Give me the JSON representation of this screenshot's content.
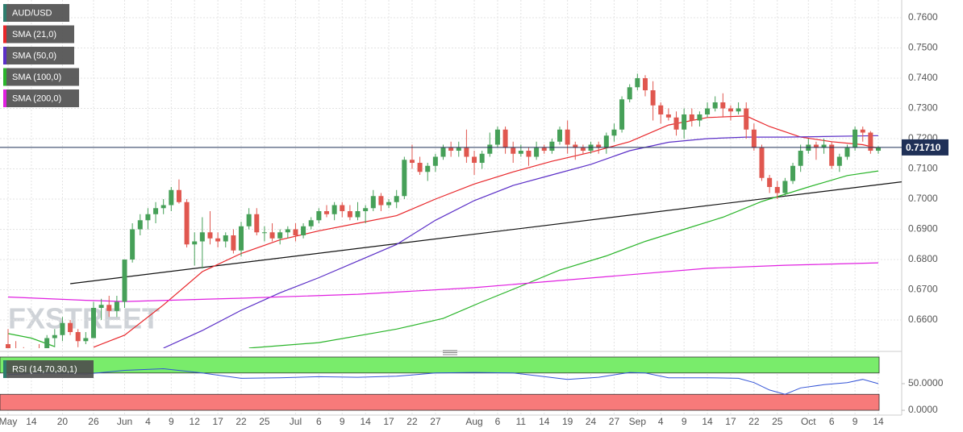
{
  "chart_data": {
    "type": "candlestick",
    "ylim": [
      0.65067,
      0.76587
    ],
    "yticks": [
      {
        "value": 0.66,
        "label": "0.6600"
      },
      {
        "value": 0.67,
        "label": "0.6700"
      },
      {
        "value": 0.68,
        "label": "0.6800"
      },
      {
        "value": 0.69,
        "label": "0.6900"
      },
      {
        "value": 0.7,
        "label": "0.7000"
      },
      {
        "value": 0.71,
        "label": "0.7100"
      },
      {
        "value": 0.72,
        "label": "0.7200"
      },
      {
        "value": 0.73,
        "label": "0.7300"
      },
      {
        "value": 0.74,
        "label": "0.7400"
      },
      {
        "value": 0.75,
        "label": "0.7500"
      },
      {
        "value": 0.76,
        "label": "0.7600"
      }
    ],
    "grid": true,
    "up_color": "#46a058",
    "down_color": "#e0574f",
    "watermark": "FXSTREET",
    "last_price_label": "0.71710",
    "last_price_color": "#1f3057",
    "categories": [
      "May",
      null,
      null,
      "14",
      null,
      null,
      null,
      "20",
      null,
      null,
      null,
      "26",
      null,
      null,
      null,
      "Jun",
      null,
      null,
      "4",
      null,
      null,
      "9",
      null,
      null,
      "12",
      null,
      null,
      "17",
      null,
      null,
      "22",
      null,
      null,
      "25",
      null,
      null,
      null,
      "Jul",
      null,
      null,
      "6",
      null,
      null,
      "9",
      null,
      null,
      "14",
      null,
      null,
      "17",
      null,
      null,
      "22",
      null,
      null,
      "27",
      null,
      null,
      null,
      null,
      "Aug",
      null,
      null,
      "6",
      null,
      null,
      "11",
      null,
      null,
      "14",
      null,
      null,
      "19",
      null,
      null,
      "24",
      null,
      null,
      "27",
      null,
      null,
      "Sep",
      null,
      null,
      "4",
      null,
      null,
      "9",
      null,
      null,
      "14",
      null,
      null,
      "17",
      null,
      null,
      "22",
      null,
      null,
      "25",
      null,
      null,
      null,
      "Oct",
      null,
      null,
      "6",
      null,
      null,
      "9",
      null,
      null,
      "14"
    ],
    "series": [
      {
        "name": "AUD/USD",
        "color": "#2e7d6e",
        "ohlc": [
          [
            0.652,
            0.657,
            0.649,
            0.65
          ],
          [
            0.65,
            0.653,
            0.646,
            0.648
          ],
          [
            0.648,
            0.651,
            0.644,
            0.647
          ],
          [
            0.647,
            0.65,
            0.64,
            0.649
          ],
          [
            0.649,
            0.652,
            0.644,
            0.645
          ],
          [
            0.645,
            0.655,
            0.644,
            0.654
          ],
          [
            0.654,
            0.657,
            0.651,
            0.655
          ],
          [
            0.655,
            0.661,
            0.653,
            0.659
          ],
          [
            0.659,
            0.66,
            0.655,
            0.656
          ],
          [
            0.656,
            0.657,
            0.651,
            0.653
          ],
          [
            0.653,
            0.656,
            0.652,
            0.654
          ],
          [
            0.654,
            0.666,
            0.654,
            0.664
          ],
          [
            0.664,
            0.667,
            0.66,
            0.665
          ],
          [
            0.665,
            0.668,
            0.661,
            0.663
          ],
          [
            0.663,
            0.668,
            0.661,
            0.666
          ],
          [
            0.666,
            0.68,
            0.664,
            0.68
          ],
          [
            0.68,
            0.692,
            0.679,
            0.69
          ],
          [
            0.69,
            0.695,
            0.688,
            0.693
          ],
          [
            0.693,
            0.697,
            0.69,
            0.695
          ],
          [
            0.695,
            0.699,
            0.692,
            0.697
          ],
          [
            0.697,
            0.7,
            0.695,
            0.698
          ],
          [
            0.698,
            0.704,
            0.696,
            0.703
          ],
          [
            0.703,
            0.7065,
            0.6985,
            0.699
          ],
          [
            0.699,
            0.7,
            0.684,
            0.685
          ],
          [
            0.685,
            0.689,
            0.678,
            0.686
          ],
          [
            0.686,
            0.694,
            0.677,
            0.689
          ],
          [
            0.689,
            0.696,
            0.685,
            0.687
          ],
          [
            0.687,
            0.689,
            0.684,
            0.686
          ],
          [
            0.686,
            0.689,
            0.684,
            0.688
          ],
          [
            0.688,
            0.69,
            0.682,
            0.683
          ],
          [
            0.683,
            0.6925,
            0.681,
            0.691
          ],
          [
            0.691,
            0.697,
            0.69,
            0.695
          ],
          [
            0.695,
            0.697,
            0.688,
            0.689
          ],
          [
            0.689,
            0.691,
            0.686,
            0.689
          ],
          [
            0.689,
            0.692,
            0.686,
            0.687
          ],
          [
            0.687,
            0.69,
            0.685,
            0.689
          ],
          [
            0.689,
            0.691,
            0.687,
            0.69
          ],
          [
            0.69,
            0.692,
            0.686,
            0.688
          ],
          [
            0.688,
            0.692,
            0.687,
            0.691
          ],
          [
            0.691,
            0.694,
            0.69,
            0.693
          ],
          [
            0.693,
            0.697,
            0.692,
            0.696
          ],
          [
            0.696,
            0.698,
            0.694,
            0.695
          ],
          [
            0.695,
            0.699,
            0.693,
            0.698
          ],
          [
            0.698,
            0.699,
            0.694,
            0.696
          ],
          [
            0.696,
            0.698,
            0.693,
            0.694
          ],
          [
            0.694,
            0.699,
            0.693,
            0.696
          ],
          [
            0.696,
            0.698,
            0.692,
            0.697
          ],
          [
            0.697,
            0.703,
            0.696,
            0.701
          ],
          [
            0.701,
            0.702,
            0.696,
            0.698
          ],
          [
            0.698,
            0.7,
            0.697,
            0.699
          ],
          [
            0.699,
            0.703,
            0.697,
            0.701
          ],
          [
            0.701,
            0.714,
            0.7,
            0.713
          ],
          [
            0.713,
            0.718,
            0.71,
            0.712
          ],
          [
            0.712,
            0.714,
            0.708,
            0.709
          ],
          [
            0.709,
            0.712,
            0.706,
            0.711
          ],
          [
            0.711,
            0.715,
            0.709,
            0.714
          ],
          [
            0.714,
            0.718,
            0.713,
            0.717
          ],
          [
            0.717,
            0.719,
            0.714,
            0.716
          ],
          [
            0.716,
            0.719,
            0.714,
            0.717
          ],
          [
            0.717,
            0.723,
            0.712,
            0.714
          ],
          [
            0.714,
            0.716,
            0.708,
            0.712
          ],
          [
            0.712,
            0.716,
            0.71,
            0.715
          ],
          [
            0.715,
            0.722,
            0.714,
            0.718
          ],
          [
            0.718,
            0.724,
            0.717,
            0.723
          ],
          [
            0.723,
            0.724,
            0.715,
            0.717
          ],
          [
            0.717,
            0.719,
            0.712,
            0.715
          ],
          [
            0.715,
            0.718,
            0.714,
            0.716
          ],
          [
            0.716,
            0.717,
            0.711,
            0.714
          ],
          [
            0.714,
            0.719,
            0.713,
            0.717
          ],
          [
            0.717,
            0.718,
            0.715,
            0.716
          ],
          [
            0.716,
            0.72,
            0.715,
            0.719
          ],
          [
            0.719,
            0.724,
            0.718,
            0.723
          ],
          [
            0.723,
            0.726,
            0.715,
            0.718
          ],
          [
            0.718,
            0.719,
            0.713,
            0.717
          ],
          [
            0.717,
            0.718,
            0.715,
            0.716
          ],
          [
            0.716,
            0.719,
            0.715,
            0.718
          ],
          [
            0.718,
            0.719,
            0.715,
            0.717
          ],
          [
            0.717,
            0.722,
            0.715,
            0.721
          ],
          [
            0.721,
            0.725,
            0.719,
            0.723
          ],
          [
            0.723,
            0.734,
            0.722,
            0.733
          ],
          [
            0.733,
            0.738,
            0.732,
            0.737
          ],
          [
            0.737,
            0.7415,
            0.736,
            0.74
          ],
          [
            0.74,
            0.741,
            0.734,
            0.736
          ],
          [
            0.736,
            0.739,
            0.726,
            0.731
          ],
          [
            0.731,
            0.732,
            0.725,
            0.728
          ],
          [
            0.728,
            0.73,
            0.726,
            0.727
          ],
          [
            0.727,
            0.729,
            0.721,
            0.723
          ],
          [
            0.723,
            0.73,
            0.72,
            0.728
          ],
          [
            0.728,
            0.73,
            0.724,
            0.726
          ],
          [
            0.726,
            0.729,
            0.724,
            0.728
          ],
          [
            0.728,
            0.732,
            0.727,
            0.73
          ],
          [
            0.73,
            0.734,
            0.729,
            0.732
          ],
          [
            0.732,
            0.735,
            0.727,
            0.73
          ],
          [
            0.73,
            0.731,
            0.726,
            0.729
          ],
          [
            0.729,
            0.732,
            0.728,
            0.73
          ],
          [
            0.73,
            0.732,
            0.72,
            0.723
          ],
          [
            0.723,
            0.725,
            0.716,
            0.717
          ],
          [
            0.717,
            0.718,
            0.706,
            0.707
          ],
          [
            0.707,
            0.708,
            0.702,
            0.704
          ],
          [
            0.704,
            0.706,
            0.7,
            0.702
          ],
          [
            0.702,
            0.707,
            0.701,
            0.706
          ],
          [
            0.706,
            0.712,
            0.705,
            0.711
          ],
          [
            0.711,
            0.718,
            0.709,
            0.716
          ],
          [
            0.716,
            0.72,
            0.715,
            0.718
          ],
          [
            0.718,
            0.719,
            0.713,
            0.717
          ],
          [
            0.717,
            0.72,
            0.715,
            0.718
          ],
          [
            0.718,
            0.719,
            0.71,
            0.711
          ],
          [
            0.711,
            0.715,
            0.709,
            0.714
          ],
          [
            0.714,
            0.718,
            0.713,
            0.717
          ],
          [
            0.717,
            0.724,
            0.716,
            0.723
          ],
          [
            0.723,
            0.724,
            0.719,
            0.722
          ],
          [
            0.722,
            0.7225,
            0.715,
            0.716
          ],
          [
            0.716,
            0.7175,
            0.715,
            0.7171
          ]
        ]
      },
      {
        "name": "SMA (21,0)",
        "color": "#e8262a",
        "x": [
          11,
          15,
          20,
          25,
          30,
          35,
          40,
          45,
          50,
          55,
          60,
          65,
          70,
          75,
          80,
          85,
          90,
          95,
          98,
          102,
          106,
          110,
          112
        ],
        "values": [
          0.651,
          0.655,
          0.665,
          0.676,
          0.682,
          0.6865,
          0.6895,
          0.692,
          0.6945,
          0.7,
          0.705,
          0.709,
          0.7125,
          0.7155,
          0.719,
          0.7245,
          0.727,
          0.7275,
          0.724,
          0.7205,
          0.719,
          0.718,
          0.7168
        ]
      },
      {
        "name": "SMA (50,0)",
        "color": "#5b2fc7",
        "x": [
          20,
          25,
          30,
          35,
          40,
          45,
          50,
          55,
          60,
          65,
          70,
          75,
          80,
          85,
          90,
          95,
          100,
          105,
          112
        ],
        "values": [
          0.6507,
          0.6565,
          0.6632,
          0.669,
          0.674,
          0.6795,
          0.685,
          0.693,
          0.6995,
          0.7045,
          0.708,
          0.7115,
          0.716,
          0.7188,
          0.72,
          0.7205,
          0.7205,
          0.7207,
          0.721
        ]
      },
      {
        "name": "SMA (100,0)",
        "color": "#2bb52b",
        "x": [
          0,
          3,
          6,
          7,
          31,
          40,
          50,
          56,
          61,
          66,
          71,
          77,
          82,
          87,
          92,
          97,
          103,
          108,
          112
        ],
        "values": [
          0.6555,
          0.654,
          0.6512,
          null,
          0.6507,
          0.6525,
          0.657,
          0.6605,
          0.666,
          0.6712,
          0.6765,
          0.6812,
          0.686,
          0.69,
          0.694,
          0.6992,
          0.704,
          0.7078,
          0.7093
        ]
      },
      {
        "name": "SMA (200,0)",
        "color": "#e020e0",
        "x": [
          0,
          10,
          15,
          30,
          45,
          60,
          75,
          90,
          100,
          112
        ],
        "values": [
          0.6676,
          0.6665,
          0.6661,
          0.6672,
          0.6685,
          0.6707,
          0.6739,
          0.6771,
          0.6781,
          0.6789
        ]
      }
    ],
    "trendline": {
      "color": "#111111",
      "x": [
        8,
        115
      ],
      "values": [
        0.672,
        0.7057
      ]
    },
    "rsi": {
      "name": "RSI (14,70,30,1)",
      "color": "#3353d6",
      "legend_color": "#2e7d6e",
      "ylim": [
        -9,
        104.5
      ],
      "yticks": [
        {
          "value": 0,
          "label": "0.0000"
        },
        {
          "value": 50,
          "label": "50.0000"
        }
      ],
      "overbought": 70,
      "oversold": 30,
      "overbought_color": "#79ec6b",
      "oversold_color": "#f77a7a",
      "x": [
        0,
        5,
        10,
        15,
        20,
        25,
        30,
        35,
        40,
        45,
        50,
        55,
        60,
        65,
        68,
        72,
        76,
        80,
        82,
        85,
        90,
        94,
        96,
        98,
        100,
        102,
        105,
        108,
        110,
        112
      ],
      "values": [
        67,
        70,
        68,
        75,
        78,
        70,
        60,
        61,
        63,
        62,
        64,
        70,
        71,
        70,
        65,
        58,
        62,
        71,
        70,
        61,
        61,
        60,
        52,
        38,
        30,
        42,
        48,
        52,
        58,
        50
      ]
    }
  }
}
